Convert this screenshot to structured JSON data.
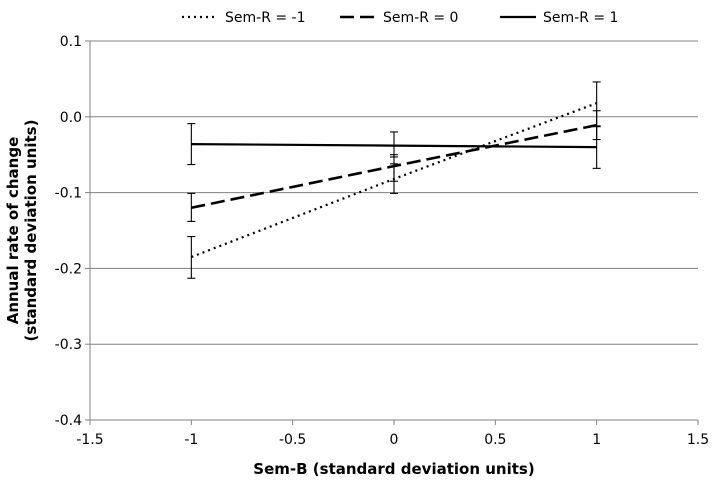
{
  "chart_data": {
    "type": "line",
    "title": "",
    "xlabel": "Sem-B (standard deviation units)",
    "ylabel_lines": [
      "Annual  rate of change",
      "(standard deviation units)"
    ],
    "xlim": [
      -1.5,
      1.5
    ],
    "ylim": [
      -0.4,
      0.1
    ],
    "x_ticks": [
      -1.5,
      -1,
      -0.5,
      0,
      0.5,
      1,
      1.5
    ],
    "x_tick_labels": [
      "-1.5",
      "-1",
      "-0.5",
      "0",
      "0.5",
      "1",
      "1.5"
    ],
    "y_ticks": [
      0.1,
      0.0,
      -0.1,
      -0.2,
      -0.3,
      -0.4
    ],
    "y_tick_labels": [
      "0.1",
      "0.0",
      "-0.1",
      "-0.2",
      "-0.3",
      "-0.4"
    ],
    "grid": "horizontal",
    "legend_position": "top",
    "x": [
      -1,
      0,
      1
    ],
    "series": [
      {
        "name": "Sem-R = -1",
        "style": "dotted",
        "values": [
          -0.185,
          -0.082,
          0.018
        ],
        "error_low": [
          -0.213,
          -0.101,
          -0.013
        ],
        "error_high": [
          -0.158,
          -0.062,
          0.046
        ]
      },
      {
        "name": "Sem-R = 0",
        "style": "dashed",
        "values": [
          -0.12,
          -0.065,
          -0.011
        ],
        "error_low": [
          -0.138,
          -0.085,
          -0.03
        ],
        "error_high": [
          -0.101,
          -0.05,
          0.008
        ]
      },
      {
        "name": "Sem-R = 1",
        "style": "solid",
        "values": [
          -0.036,
          -0.038,
          -0.04
        ],
        "error_low": [
          -0.063,
          -0.053,
          -0.068
        ],
        "error_high": [
          -0.009,
          -0.02,
          -0.012
        ]
      }
    ],
    "colors": {
      "line": "#000000",
      "grid": "#808080",
      "axis": "#808080",
      "background": "#ffffff"
    }
  }
}
